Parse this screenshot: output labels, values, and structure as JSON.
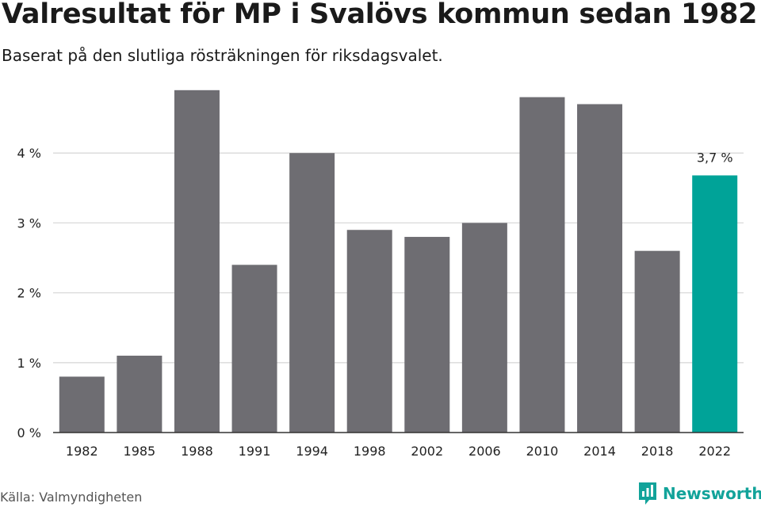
{
  "title": "Valresultat för MP i Svalövs kommun sedan 1982",
  "subtitle": "Baserat på den slutliga rösträkningen för riksdagsvalet.",
  "source": "Källa: Valmyndigheten",
  "brand": {
    "name": "Newsworthy",
    "icon": "newsworthy-logo-icon",
    "color": "#12a39a"
  },
  "colors": {
    "bar": "#6e6d72",
    "highlight": "#00a398",
    "grid": "#d9d9d9",
    "axis": "#333333"
  },
  "chart_data": {
    "type": "bar",
    "categories": [
      "1982",
      "1985",
      "1988",
      "1991",
      "1994",
      "1998",
      "2002",
      "2006",
      "2010",
      "2014",
      "2018",
      "2022"
    ],
    "values": [
      0.8,
      1.1,
      4.9,
      2.4,
      4.0,
      2.9,
      2.8,
      3.0,
      4.8,
      4.7,
      2.6,
      3.68
    ],
    "highlight_index": 11,
    "data_labels": [
      {
        "index": 11,
        "text": "3,7 %"
      }
    ],
    "yticks": [
      {
        "value": 0,
        "label": "0 %"
      },
      {
        "value": 1,
        "label": "1 %"
      },
      {
        "value": 2,
        "label": "2 %"
      },
      {
        "value": 3,
        "label": "3 %"
      },
      {
        "value": 4,
        "label": "4 %"
      }
    ],
    "ylim": [
      0,
      5
    ],
    "xlabel": "",
    "ylabel": "",
    "grid": true,
    "legend": false
  }
}
